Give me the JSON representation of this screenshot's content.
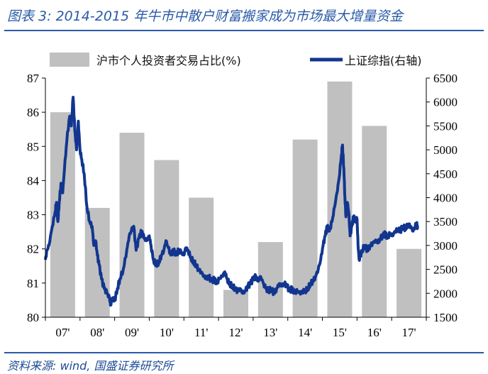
{
  "header": {
    "title": "图表 3:  2014-2015 年牛市中散户财富搬家成为市场最大增量资金"
  },
  "footer": {
    "source": "资料来源:  wind, 国盛证券研究所"
  },
  "colors": {
    "bar": "#c0c0c0",
    "line": "#12368f",
    "accent": "#2a5aa8"
  },
  "chart_data": {
    "type": "bar+line",
    "title": "2014-2015 年牛市中散户财富搬家成为市场最大增量资金",
    "categories": [
      "07'",
      "08'",
      "09'",
      "10'",
      "11'",
      "12'",
      "13'",
      "14'",
      "15'",
      "16'",
      "17'"
    ],
    "legend": {
      "placement": "top",
      "bar_label": "沪市个人投资者交易占比(%)",
      "line_label": "上证综指(右轴)"
    },
    "left_axis": {
      "ylim": [
        80,
        87
      ],
      "ticks": [
        80,
        81,
        82,
        83,
        84,
        85,
        86,
        87
      ]
    },
    "right_axis": {
      "ylim": [
        1500,
        6500
      ],
      "ticks": [
        1500,
        2000,
        2500,
        3000,
        3500,
        4000,
        4500,
        5000,
        5500,
        6000,
        6500
      ]
    },
    "series": [
      {
        "name": "沪市个人投资者交易占比(%)",
        "type": "bar",
        "axis": "left",
        "values": [
          86.0,
          83.2,
          85.4,
          84.6,
          83.5,
          80.8,
          82.2,
          85.2,
          86.9,
          85.6,
          82.0
        ]
      },
      {
        "name": "上证综指(右轴)",
        "type": "line",
        "axis": "right",
        "points": [
          [
            0.0,
            2700
          ],
          [
            0.05,
            2900
          ],
          [
            0.1,
            3000
          ],
          [
            0.2,
            3400
          ],
          [
            0.28,
            3700
          ],
          [
            0.32,
            3900
          ],
          [
            0.36,
            3500
          ],
          [
            0.4,
            3900
          ],
          [
            0.45,
            4300
          ],
          [
            0.5,
            4100
          ],
          [
            0.55,
            4600
          ],
          [
            0.62,
            5200
          ],
          [
            0.7,
            5700
          ],
          [
            0.75,
            5500
          ],
          [
            0.8,
            6100
          ],
          [
            0.85,
            5400
          ],
          [
            0.9,
            5000
          ],
          [
            0.95,
            5600
          ],
          [
            1.0,
            5000
          ],
          [
            1.05,
            4800
          ],
          [
            1.12,
            4500
          ],
          [
            1.2,
            3800
          ],
          [
            1.28,
            3500
          ],
          [
            1.35,
            3400
          ],
          [
            1.4,
            3000
          ],
          [
            1.45,
            3100
          ],
          [
            1.5,
            2800
          ],
          [
            1.55,
            2600
          ],
          [
            1.62,
            2300
          ],
          [
            1.7,
            2100
          ],
          [
            1.78,
            2000
          ],
          [
            1.85,
            1900
          ],
          [
            1.88,
            1750
          ],
          [
            1.93,
            1900
          ],
          [
            2.0,
            1850
          ],
          [
            2.08,
            2100
          ],
          [
            2.15,
            2300
          ],
          [
            2.25,
            2500
          ],
          [
            2.35,
            2900
          ],
          [
            2.42,
            3200
          ],
          [
            2.48,
            3300
          ],
          [
            2.55,
            3400
          ],
          [
            2.62,
            2900
          ],
          [
            2.7,
            3150
          ],
          [
            2.78,
            3300
          ],
          [
            2.85,
            3150
          ],
          [
            2.92,
            3100
          ],
          [
            3.0,
            3200
          ],
          [
            3.05,
            3000
          ],
          [
            3.12,
            2700
          ],
          [
            3.2,
            2600
          ],
          [
            3.28,
            2650
          ],
          [
            3.35,
            2800
          ],
          [
            3.42,
            2900
          ],
          [
            3.48,
            3100
          ],
          [
            3.55,
            2950
          ],
          [
            3.62,
            2800
          ],
          [
            3.7,
            2900
          ],
          [
            3.78,
            2800
          ],
          [
            3.85,
            2900
          ],
          [
            3.92,
            2850
          ],
          [
            4.0,
            2800
          ],
          [
            4.05,
            2950
          ],
          [
            4.12,
            2900
          ],
          [
            4.2,
            2750
          ],
          [
            4.28,
            2650
          ],
          [
            4.35,
            2600
          ],
          [
            4.42,
            2500
          ],
          [
            4.5,
            2450
          ],
          [
            4.58,
            2350
          ],
          [
            4.65,
            2300
          ],
          [
            4.72,
            2350
          ],
          [
            4.8,
            2250
          ],
          [
            4.88,
            2300
          ],
          [
            4.95,
            2200
          ],
          [
            5.02,
            2300
          ],
          [
            5.1,
            2350
          ],
          [
            5.18,
            2450
          ],
          [
            5.25,
            2300
          ],
          [
            5.32,
            2200
          ],
          [
            5.4,
            2150
          ],
          [
            5.48,
            2100
          ],
          [
            5.55,
            2050
          ],
          [
            5.62,
            2100
          ],
          [
            5.7,
            2000
          ],
          [
            5.78,
            2050
          ],
          [
            5.85,
            2150
          ],
          [
            5.92,
            2200
          ],
          [
            6.0,
            2300
          ],
          [
            6.08,
            2350
          ],
          [
            6.15,
            2250
          ],
          [
            6.22,
            2350
          ],
          [
            6.3,
            2200
          ],
          [
            6.38,
            2100
          ],
          [
            6.45,
            2050
          ],
          [
            6.52,
            2100
          ],
          [
            6.6,
            2000
          ],
          [
            6.68,
            2100
          ],
          [
            6.75,
            2200
          ],
          [
            6.82,
            2150
          ],
          [
            6.9,
            2200
          ],
          [
            6.98,
            2150
          ],
          [
            7.05,
            2050
          ],
          [
            7.12,
            2100
          ],
          [
            7.2,
            2000
          ],
          [
            7.28,
            2050
          ],
          [
            7.35,
            2000
          ],
          [
            7.42,
            2050
          ],
          [
            7.5,
            2050
          ],
          [
            7.58,
            2100
          ],
          [
            7.65,
            2200
          ],
          [
            7.72,
            2250
          ],
          [
            7.8,
            2350
          ],
          [
            7.88,
            2500
          ],
          [
            7.95,
            2700
          ],
          [
            8.02,
            3000
          ],
          [
            8.08,
            3200
          ],
          [
            8.14,
            3400
          ],
          [
            8.2,
            3300
          ],
          [
            8.28,
            3500
          ],
          [
            8.35,
            3800
          ],
          [
            8.42,
            4100
          ],
          [
            8.48,
            4400
          ],
          [
            8.55,
            4900
          ],
          [
            8.58,
            5100
          ],
          [
            8.62,
            4600
          ],
          [
            8.65,
            4000
          ],
          [
            8.68,
            3600
          ],
          [
            8.72,
            3900
          ],
          [
            8.76,
            3700
          ],
          [
            8.8,
            3200
          ],
          [
            8.85,
            3400
          ],
          [
            8.9,
            3600
          ],
          [
            8.95,
            3500
          ],
          [
            9.0,
            3550
          ],
          [
            9.03,
            3000
          ],
          [
            9.06,
            2700
          ],
          [
            9.1,
            2800
          ],
          [
            9.15,
            2900
          ],
          [
            9.22,
            3000
          ],
          [
            9.3,
            2900
          ],
          [
            9.38,
            3000
          ],
          [
            9.45,
            3050
          ],
          [
            9.52,
            3100
          ],
          [
            9.6,
            3050
          ],
          [
            9.68,
            3150
          ],
          [
            9.75,
            3200
          ],
          [
            9.82,
            3250
          ],
          [
            9.88,
            3150
          ],
          [
            9.95,
            3250
          ],
          [
            10.02,
            3200
          ],
          [
            10.1,
            3300
          ],
          [
            10.18,
            3350
          ],
          [
            10.25,
            3300
          ],
          [
            10.32,
            3400
          ],
          [
            10.4,
            3350
          ],
          [
            10.48,
            3450
          ],
          [
            10.55,
            3400
          ],
          [
            10.62,
            3300
          ],
          [
            10.68,
            3400
          ],
          [
            10.72,
            3450
          ],
          [
            10.75,
            3350
          ]
        ]
      }
    ]
  }
}
